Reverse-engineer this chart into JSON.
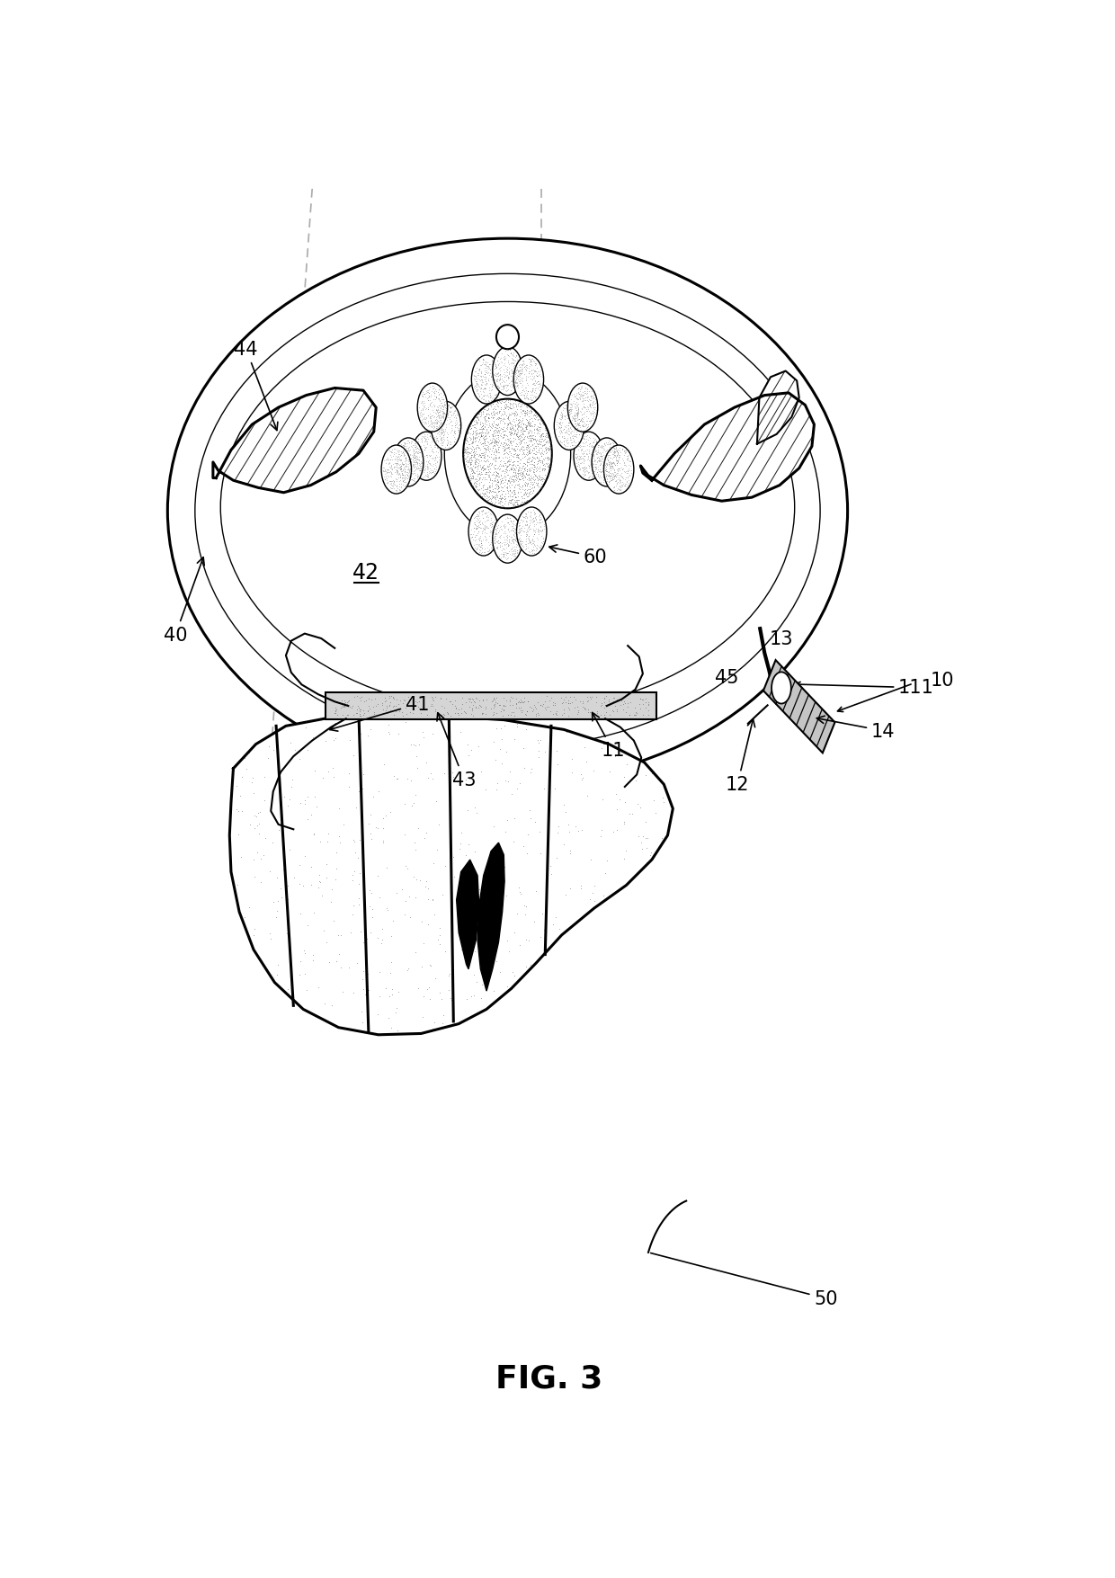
{
  "background_color": "#ffffff",
  "line_color": "#000000",
  "fig_label": "FIG. 3",
  "lw_thick": 2.2,
  "lw_med": 1.5,
  "lw_thin": 1.0,
  "label_fontsize": 15,
  "title_fontsize": 26
}
